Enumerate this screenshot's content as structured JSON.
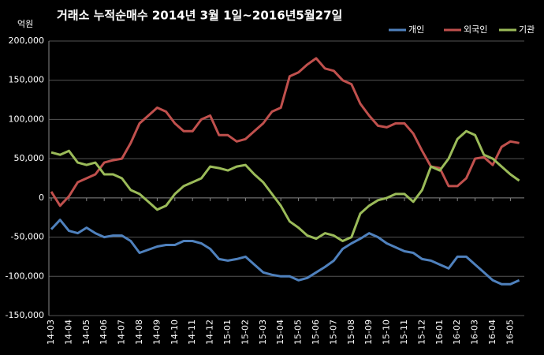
{
  "chart_data": {
    "type": "line",
    "title": "거래소  누적순매수 2014년 3월 1일~2016년5월27일",
    "y_axis_label": "억원",
    "categories": [
      "14-03",
      null,
      "14-04",
      null,
      "14-05",
      null,
      "14-06",
      null,
      "14-07",
      null,
      "14-08",
      null,
      "14-09",
      null,
      "14-10",
      null,
      "14-11",
      null,
      "14-12",
      null,
      "15-01",
      null,
      "15-02",
      null,
      "15-03",
      null,
      "15-04",
      null,
      "15-05",
      null,
      "15-06",
      null,
      "15-07",
      null,
      "15-08",
      null,
      "15-09",
      null,
      "15-10",
      null,
      "15-11",
      null,
      "15-12",
      null,
      "16-01",
      null,
      "16-02",
      null,
      "16-03",
      null,
      "16-04",
      null,
      "16-05",
      null
    ],
    "series": [
      {
        "name": "개인",
        "color": "#4f81bd",
        "values": [
          -40000,
          -28000,
          -42000,
          -45000,
          -38000,
          -45000,
          -50000,
          -48000,
          -48000,
          -55000,
          -70000,
          -66000,
          -62000,
          -60000,
          -60000,
          -55000,
          -55000,
          -58000,
          -65000,
          -78000,
          -80000,
          -78000,
          -75000,
          -85000,
          -95000,
          -98000,
          -100000,
          -100000,
          -105000,
          -102000,
          -95000,
          -88000,
          -80000,
          -65000,
          -58000,
          -52000,
          -45000,
          -50000,
          -58000,
          -63000,
          -68000,
          -70000,
          -78000,
          -80000,
          -85000,
          -90000,
          -75000,
          -75000,
          -85000,
          -95000,
          -105000,
          -110000,
          -110000,
          -105000
        ]
      },
      {
        "name": "외국인",
        "color": "#c0504d",
        "values": [
          8000,
          -10000,
          2000,
          20000,
          25000,
          30000,
          45000,
          48000,
          50000,
          70000,
          95000,
          105000,
          115000,
          110000,
          95000,
          85000,
          85000,
          100000,
          105000,
          80000,
          80000,
          72000,
          75000,
          85000,
          95000,
          110000,
          115000,
          155000,
          160000,
          170000,
          178000,
          165000,
          162000,
          150000,
          145000,
          120000,
          105000,
          92000,
          90000,
          95000,
          95000,
          82000,
          60000,
          40000,
          38000,
          15000,
          15000,
          25000,
          50000,
          52000,
          42000,
          65000,
          72000,
          70000
        ]
      },
      {
        "name": "기관",
        "color": "#9bbb59",
        "values": [
          58000,
          55000,
          60000,
          45000,
          42000,
          45000,
          30000,
          30000,
          25000,
          10000,
          5000,
          -5000,
          -15000,
          -10000,
          5000,
          15000,
          20000,
          25000,
          40000,
          38000,
          35000,
          40000,
          42000,
          30000,
          20000,
          5000,
          -10000,
          -30000,
          -38000,
          -48000,
          -52000,
          -45000,
          -48000,
          -55000,
          -50000,
          -20000,
          -10000,
          -3000,
          0,
          5000,
          5000,
          -5000,
          10000,
          40000,
          35000,
          50000,
          75000,
          85000,
          80000,
          55000,
          50000,
          40000,
          30000,
          22000
        ]
      }
    ],
    "ylim": [
      -150000,
      200000
    ],
    "yticks": [
      {
        "value": -150000,
        "label": "-150,000"
      },
      {
        "value": -100000,
        "label": "-100,000"
      },
      {
        "value": -50000,
        "label": "-50,000"
      },
      0,
      {
        "value": 50000,
        "label": "50,000"
      },
      {
        "value": 100000,
        "label": "100,000"
      },
      {
        "value": 150000,
        "label": "150,000"
      },
      {
        "value": 200000,
        "label": "200,000"
      }
    ],
    "grid": true,
    "legend": "top-right"
  }
}
